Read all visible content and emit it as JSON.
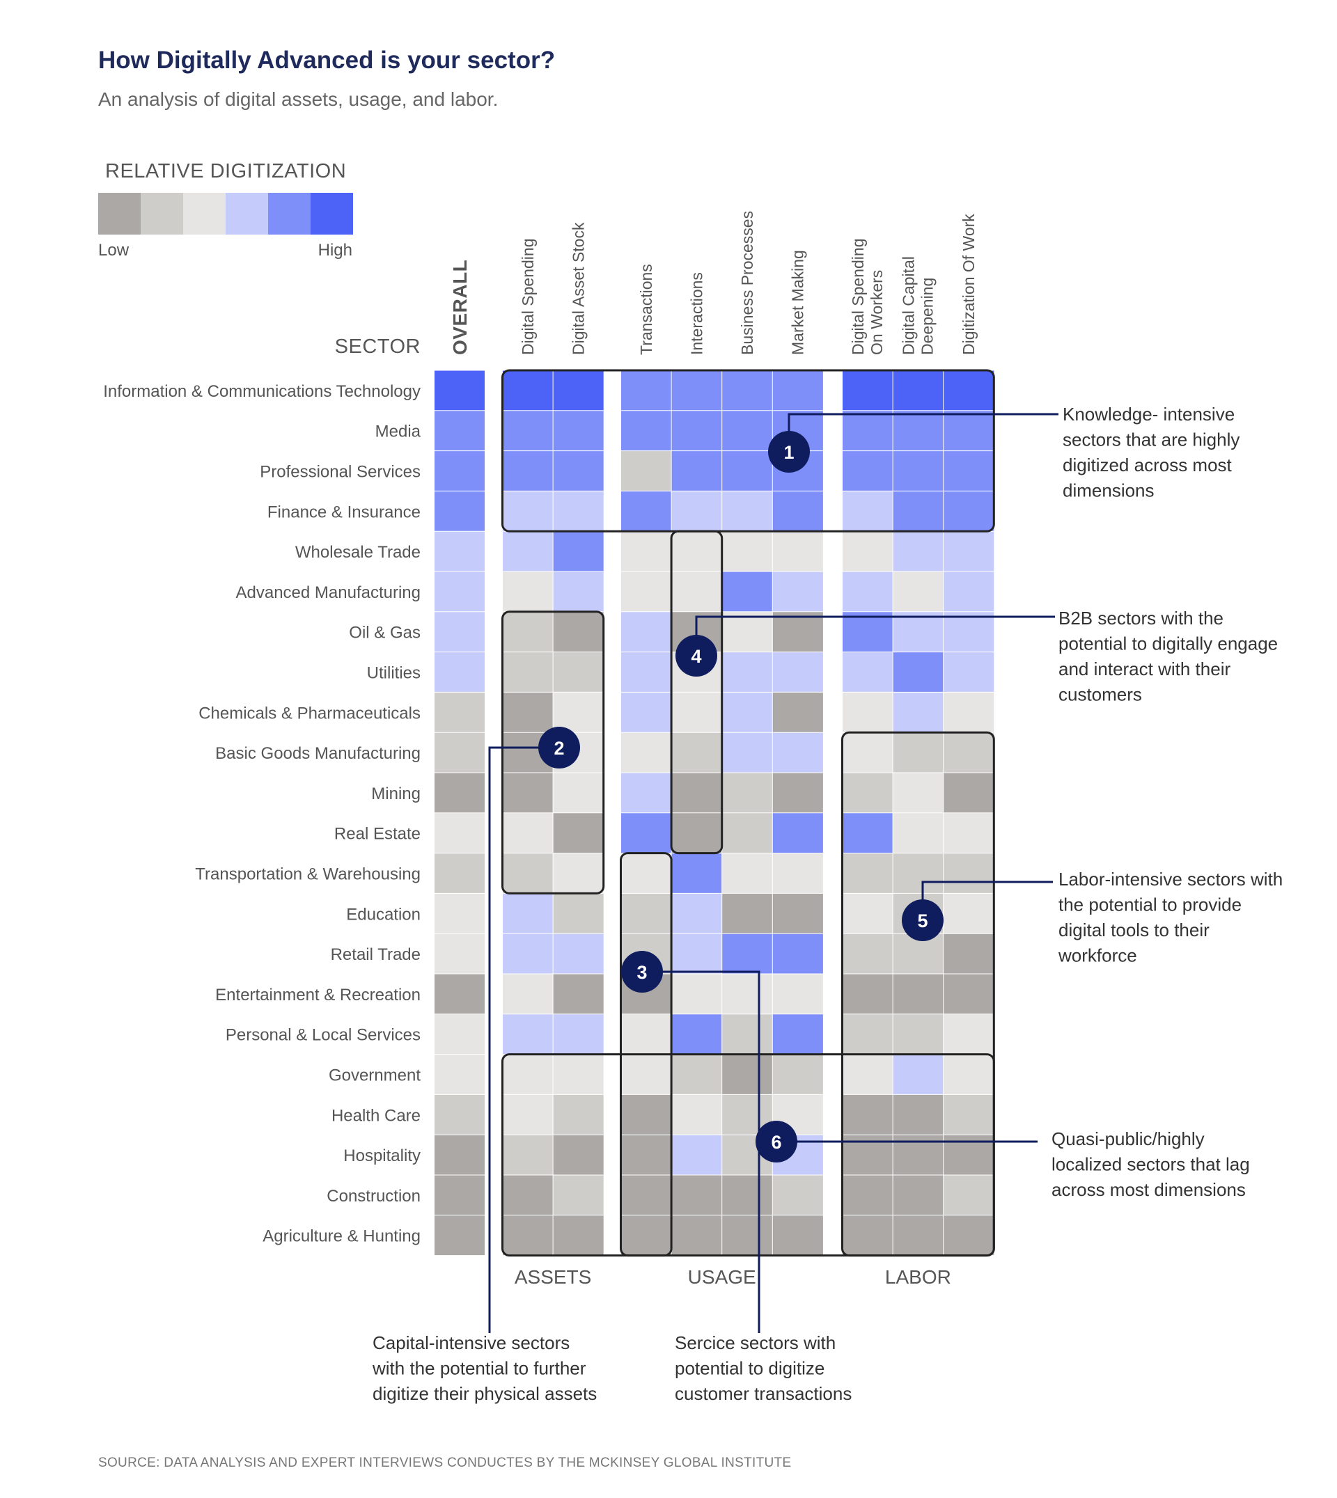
{
  "title": "How Digitally Advanced is your sector?",
  "subtitle": "An analysis of digital assets, usage, and labor.",
  "legend": {
    "title": "RELATIVE DIGITIZATION",
    "low": "Low",
    "high": "High",
    "colors": [
      "#aba8a6",
      "#cfcdca",
      "#e6e5e3",
      "#c5cbfa",
      "#7f8ff9",
      "#4d62f7"
    ]
  },
  "chart_data": {
    "type": "heatmap",
    "row_header": "SECTOR",
    "overall_label": "OVERALL",
    "columns": [
      "Digital Spending",
      "Digital Asset Stock",
      "Transactions",
      "Interactions",
      "Business Processes",
      "Market Making",
      "Digital Spending On Workers",
      "Digital Capital Deepening",
      "Digitization Of Work"
    ],
    "column_lines": [
      [
        "Digital Spending"
      ],
      [
        "Digital Asset Stock"
      ],
      [
        "Transactions"
      ],
      [
        "Interactions"
      ],
      [
        "Business Processes"
      ],
      [
        "Market Making"
      ],
      [
        "Digital Spending",
        "On Workers"
      ],
      [
        "Digital Capital",
        "Deepening"
      ],
      [
        "Digitization Of Work"
      ]
    ],
    "groups": [
      {
        "name": "ASSETS",
        "columns": [
          0,
          1
        ]
      },
      {
        "name": "USAGE",
        "columns": [
          2,
          3,
          4,
          5
        ]
      },
      {
        "name": "LABOR",
        "columns": [
          6,
          7,
          8
        ]
      }
    ],
    "scale": "1 = Low … 6 = High",
    "rows": [
      {
        "sector": "Information & Communications Technology",
        "overall": 6,
        "values": [
          6,
          6,
          5,
          5,
          5,
          5,
          6,
          6,
          6
        ]
      },
      {
        "sector": "Media",
        "overall": 5,
        "values": [
          5,
          5,
          5,
          5,
          5,
          5,
          5,
          5,
          5
        ]
      },
      {
        "sector": "Professional Services",
        "overall": 5,
        "values": [
          5,
          5,
          2,
          5,
          5,
          5,
          5,
          5,
          5
        ]
      },
      {
        "sector": "Finance & Insurance",
        "overall": 5,
        "values": [
          4,
          4,
          5,
          4,
          4,
          5,
          4,
          5,
          5
        ]
      },
      {
        "sector": "Wholesale Trade",
        "overall": 4,
        "values": [
          4,
          5,
          3,
          3,
          3,
          3,
          3,
          4,
          4
        ]
      },
      {
        "sector": "Advanced Manufacturing",
        "overall": 4,
        "values": [
          3,
          4,
          3,
          3,
          5,
          4,
          4,
          3,
          4
        ]
      },
      {
        "sector": "Oil & Gas",
        "overall": 4,
        "values": [
          2,
          1,
          4,
          1,
          3,
          1,
          5,
          4,
          4
        ]
      },
      {
        "sector": "Utilities",
        "overall": 4,
        "values": [
          2,
          2,
          4,
          3,
          4,
          4,
          4,
          5,
          4
        ]
      },
      {
        "sector": "Chemicals & Pharmaceuticals",
        "overall": 2,
        "values": [
          1,
          3,
          4,
          3,
          4,
          1,
          3,
          4,
          3
        ]
      },
      {
        "sector": "Basic  Goods Manufacturing",
        "overall": 2,
        "values": [
          1,
          3,
          3,
          2,
          4,
          4,
          3,
          2,
          2
        ]
      },
      {
        "sector": "Mining",
        "overall": 1,
        "values": [
          1,
          3,
          4,
          1,
          2,
          1,
          2,
          3,
          1
        ]
      },
      {
        "sector": "Real Estate",
        "overall": 3,
        "values": [
          3,
          1,
          5,
          1,
          2,
          5,
          5,
          3,
          3
        ]
      },
      {
        "sector": "Transportation & Warehousing",
        "overall": 2,
        "values": [
          2,
          3,
          3,
          5,
          3,
          3,
          2,
          2,
          2
        ]
      },
      {
        "sector": "Education",
        "overall": 3,
        "values": [
          4,
          2,
          2,
          4,
          1,
          1,
          3,
          2,
          3
        ]
      },
      {
        "sector": "Retail Trade",
        "overall": 3,
        "values": [
          4,
          4,
          2,
          4,
          5,
          5,
          2,
          2,
          1
        ]
      },
      {
        "sector": "Entertainment & Recreation",
        "overall": 1,
        "values": [
          3,
          1,
          1,
          3,
          3,
          3,
          1,
          1,
          1
        ]
      },
      {
        "sector": "Personal & Local Services",
        "overall": 3,
        "values": [
          4,
          4,
          3,
          5,
          2,
          5,
          2,
          2,
          3
        ]
      },
      {
        "sector": "Government",
        "overall": 3,
        "values": [
          3,
          3,
          3,
          2,
          1,
          2,
          3,
          4,
          3
        ]
      },
      {
        "sector": "Health Care",
        "overall": 2,
        "values": [
          3,
          2,
          1,
          3,
          2,
          3,
          1,
          1,
          2
        ]
      },
      {
        "sector": "Hospitality",
        "overall": 1,
        "values": [
          2,
          1,
          1,
          4,
          2,
          4,
          1,
          1,
          1
        ]
      },
      {
        "sector": "Construction",
        "overall": 1,
        "values": [
          1,
          2,
          1,
          1,
          1,
          2,
          1,
          1,
          2
        ]
      },
      {
        "sector": "Agriculture & Hunting",
        "overall": 1,
        "values": [
          1,
          1,
          1,
          1,
          1,
          1,
          1,
          1,
          1
        ]
      }
    ],
    "annotations": [
      {
        "number": "1",
        "lines": [
          "Knowledge- intensive",
          "sectors that are highly",
          "digitized across most",
          "dimensions"
        ]
      },
      {
        "number": "2",
        "lines": [
          "Capital-intensive sectors",
          "with the potential to further",
          "digitize their physical assets"
        ]
      },
      {
        "number": "3",
        "lines": [
          "Sercice sectors with",
          "potential to digitize",
          "customer transactions"
        ]
      },
      {
        "number": "4",
        "lines": [
          "B2B sectors with the",
          "potential to digitally engage",
          "and interact with their",
          "customers"
        ]
      },
      {
        "number": "5",
        "lines": [
          "Labor-intensive sectors with",
          "the potential to provide",
          "digital tools to their",
          "workforce"
        ]
      },
      {
        "number": "6",
        "lines": [
          "Quasi-public/highly",
          "localized sectors that lag",
          "across most dimensions"
        ]
      }
    ]
  },
  "source": "SOURCE: DATA ANALYSIS AND EXPERT INTERVIEWS CONDUCTES BY THE MCKINSEY GLOBAL INSTITUTE"
}
